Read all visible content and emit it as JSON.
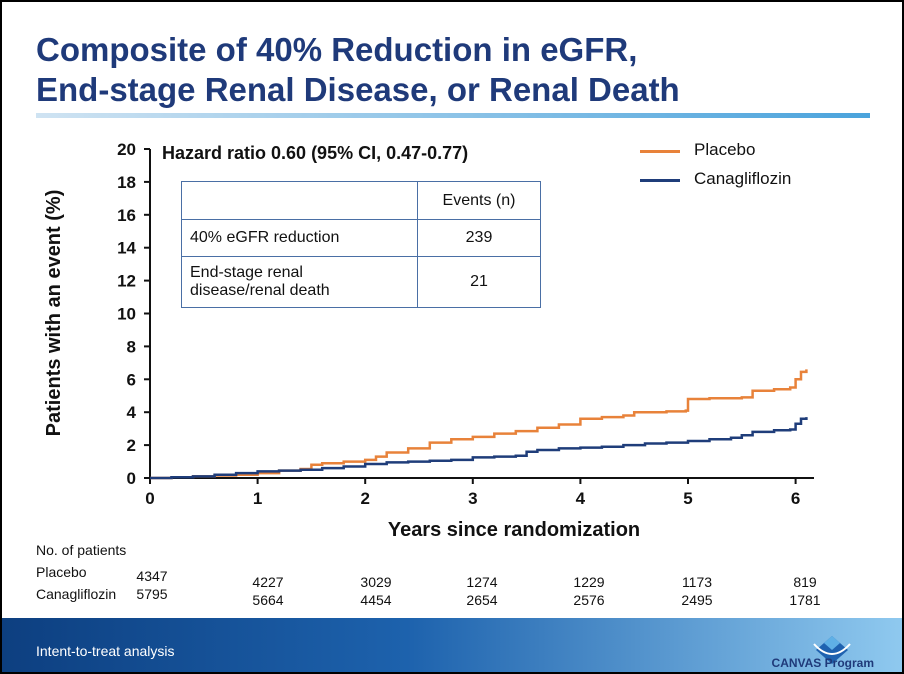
{
  "title": {
    "line1": "Composite of 40% Reduction in eGFR,",
    "line2": "End-stage Renal Disease, or Renal Death"
  },
  "hazard_ratio": "Hazard ratio 0.60 (95% CI, 0.47-0.77)",
  "events_table": {
    "header": "Events  (n)",
    "rows": [
      {
        "label": "40% eGFR reduction",
        "value": "239"
      },
      {
        "label": "End-stage renal disease/renal death",
        "value": "21"
      }
    ]
  },
  "legend": [
    {
      "name": "Placebo",
      "color": "#e8823a"
    },
    {
      "name": "Canagliflozin",
      "color": "#1f3d7a"
    }
  ],
  "risk_table": {
    "title": "No. of patients",
    "placebo_label": "Placebo",
    "cana_label": "Canagliflozin",
    "placebo": [
      "4347",
      "4227",
      "3029",
      "1274",
      "1229",
      "1173",
      "819"
    ],
    "canagliflozin": [
      "5795",
      "5664",
      "4454",
      "2654",
      "2576",
      "2495",
      "1781"
    ]
  },
  "footer": {
    "text": "Intent-to-treat analysis",
    "logo_text": "CANVAS Program"
  },
  "chart_data": {
    "type": "line",
    "xlabel": "Years since randomization",
    "ylabel": "Patients with an event (%)",
    "xlim": [
      0,
      6.2
    ],
    "ylim": [
      0,
      20
    ],
    "xticks": [
      "0",
      "1",
      "2",
      "3",
      "4",
      "5",
      "6"
    ],
    "yticks": [
      "0",
      "2",
      "4",
      "6",
      "8",
      "10",
      "12",
      "14",
      "16",
      "18",
      "20"
    ],
    "series": [
      {
        "name": "Placebo",
        "color": "#e8823a",
        "x": [
          0,
          0.2,
          0.4,
          0.6,
          0.8,
          1.0,
          1.2,
          1.4,
          1.5,
          1.6,
          1.8,
          2.0,
          2.1,
          2.2,
          2.4,
          2.6,
          2.8,
          3.0,
          3.2,
          3.4,
          3.6,
          3.8,
          4.0,
          4.2,
          4.4,
          4.5,
          4.8,
          4.98,
          5.0,
          5.2,
          5.5,
          5.6,
          5.8,
          5.95,
          6.0,
          6.05,
          6.1
        ],
        "y": [
          0,
          0.05,
          0.1,
          0.15,
          0.2,
          0.3,
          0.45,
          0.55,
          0.8,
          0.9,
          1.0,
          1.1,
          1.3,
          1.55,
          1.8,
          2.15,
          2.35,
          2.5,
          2.7,
          2.85,
          3.05,
          3.25,
          3.6,
          3.7,
          3.8,
          4.0,
          4.05,
          4.1,
          4.8,
          4.85,
          4.9,
          5.3,
          5.4,
          5.5,
          6.0,
          6.45,
          6.6
        ]
      },
      {
        "name": "Canagliflozin",
        "color": "#1f3d7a",
        "x": [
          0,
          0.2,
          0.4,
          0.6,
          0.8,
          1.0,
          1.2,
          1.4,
          1.6,
          1.8,
          2.0,
          2.2,
          2.4,
          2.6,
          2.8,
          3.0,
          3.2,
          3.4,
          3.5,
          3.6,
          3.8,
          4.0,
          4.2,
          4.4,
          4.6,
          4.8,
          5.0,
          5.2,
          5.4,
          5.5,
          5.6,
          5.8,
          5.95,
          6.0,
          6.05,
          6.1
        ],
        "y": [
          0,
          0.05,
          0.1,
          0.2,
          0.3,
          0.4,
          0.45,
          0.5,
          0.6,
          0.7,
          0.85,
          0.95,
          1.0,
          1.05,
          1.1,
          1.25,
          1.3,
          1.35,
          1.6,
          1.7,
          1.8,
          1.85,
          1.9,
          2.0,
          2.1,
          2.15,
          2.25,
          2.35,
          2.45,
          2.6,
          2.8,
          2.9,
          2.95,
          3.3,
          3.6,
          3.7
        ]
      }
    ]
  }
}
